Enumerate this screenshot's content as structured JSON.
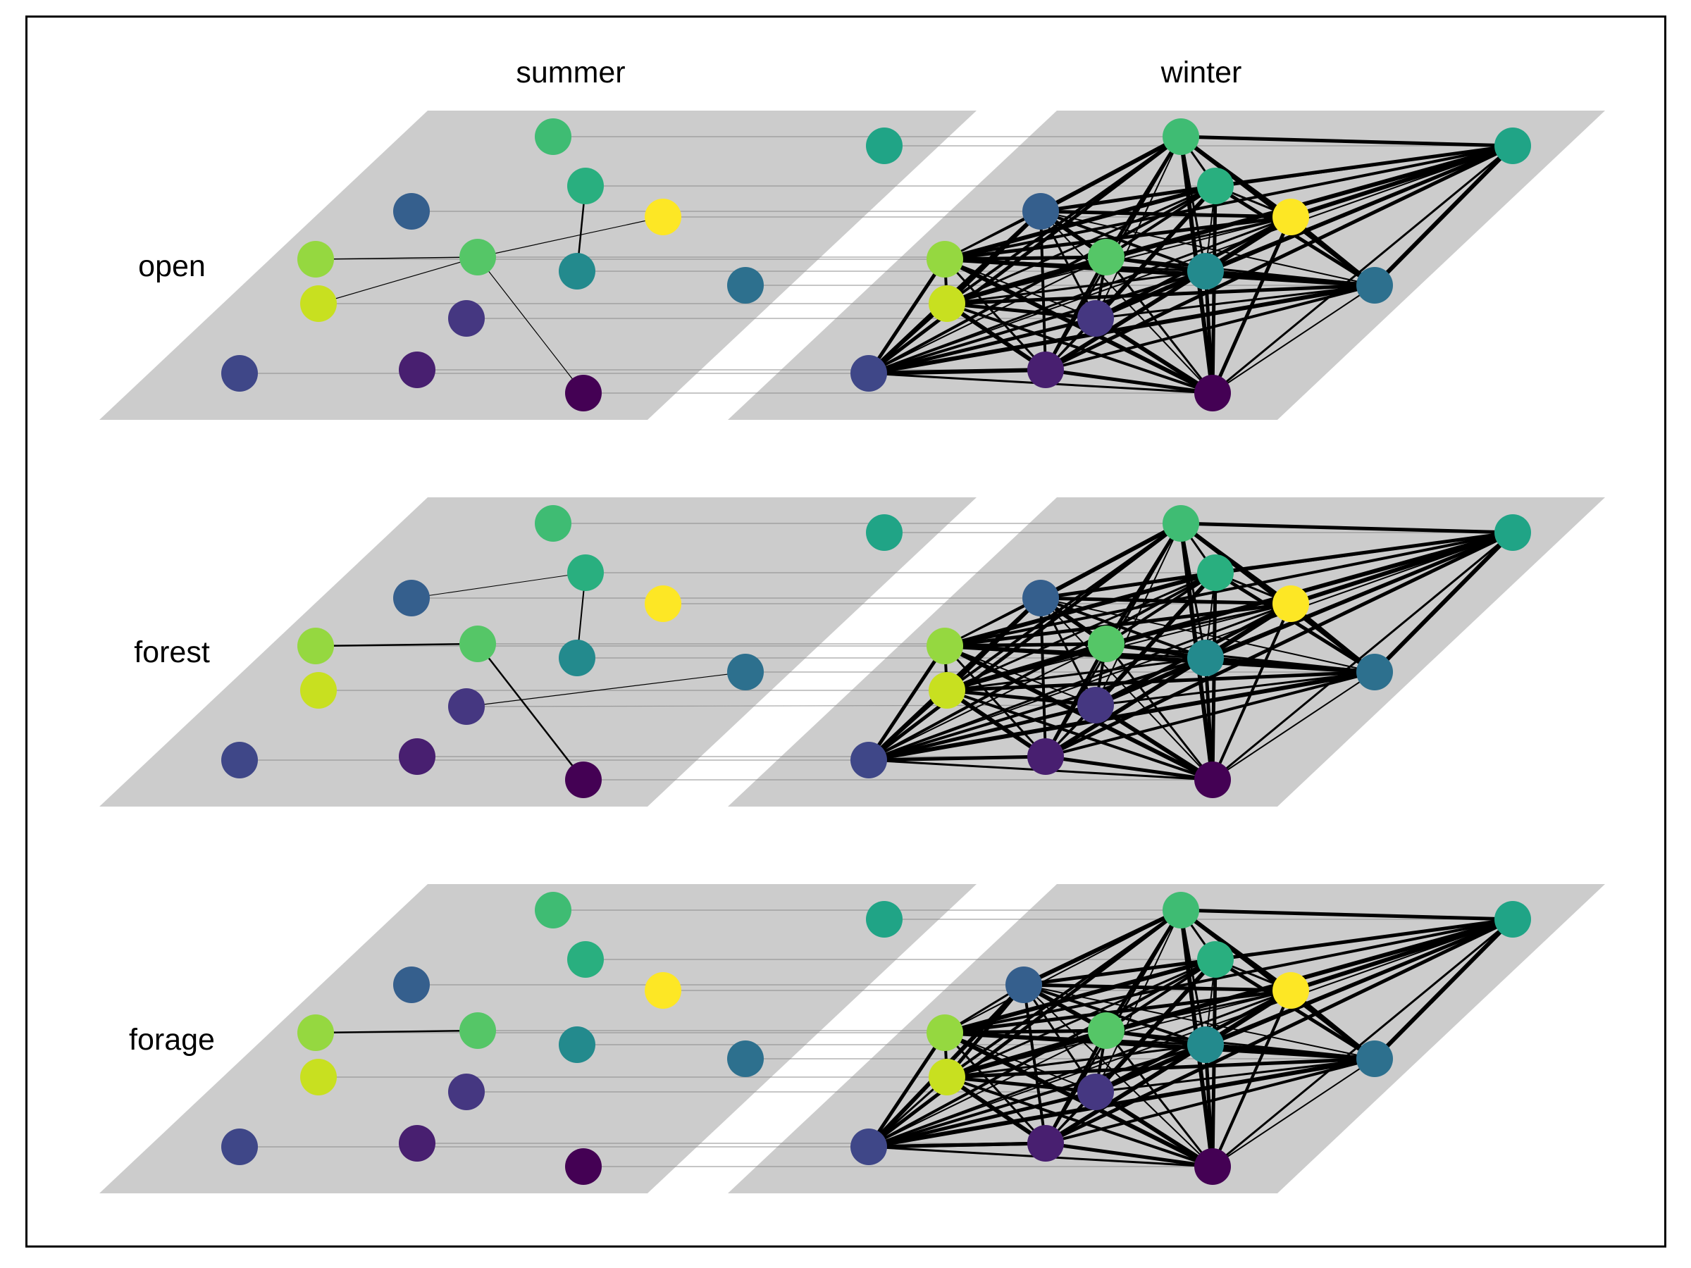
{
  "column_labels": {
    "summer": "summer",
    "winter": "winter"
  },
  "row_labels": {
    "open": "open",
    "forest": "forest",
    "forage": "forage"
  },
  "colors": {
    "panel": "#cccccc",
    "node_palette": "viridis",
    "edge": "#000000",
    "interlayer_link": "#8c8c8c"
  },
  "nodes": [
    {
      "id": "A",
      "color": "#3fbc73"
    },
    {
      "id": "B",
      "color": "#20a486"
    },
    {
      "id": "C",
      "color": "#29af7f"
    },
    {
      "id": "D",
      "color": "#355f8d"
    },
    {
      "id": "E",
      "color": "#fde725"
    },
    {
      "id": "F",
      "color": "#95d840"
    },
    {
      "id": "G",
      "color": "#55c667"
    },
    {
      "id": "H",
      "color": "#238a8d"
    },
    {
      "id": "I",
      "color": "#2d708e"
    },
    {
      "id": "J",
      "color": "#c8e020"
    },
    {
      "id": "K",
      "color": "#453781"
    },
    {
      "id": "L",
      "color": "#3f4788"
    },
    {
      "id": "M",
      "color": "#481f70"
    },
    {
      "id": "N",
      "color": "#440154"
    }
  ],
  "layers": [
    {
      "row": "open",
      "season": "summer",
      "edges": [
        {
          "s": "C",
          "t": "H",
          "w": 2.5
        },
        {
          "s": "F",
          "t": "G",
          "w": 1.5
        },
        {
          "s": "J",
          "t": "G",
          "w": 1.2
        },
        {
          "s": "G",
          "t": "E",
          "w": 1.2
        },
        {
          "s": "G",
          "t": "N",
          "w": 1.2
        }
      ]
    },
    {
      "row": "open",
      "season": "winter",
      "dense": true,
      "edges": [
        {
          "s": "B",
          "t": "A",
          "w": 2
        },
        {
          "s": "B",
          "t": "C",
          "w": 3
        },
        {
          "s": "B",
          "t": "E",
          "w": 4
        },
        {
          "s": "B",
          "t": "D",
          "w": 2
        },
        {
          "s": "B",
          "t": "F",
          "w": 2
        },
        {
          "s": "B",
          "t": "I",
          "w": 6
        },
        {
          "s": "E",
          "t": "I",
          "w": 2
        },
        {
          "s": "E",
          "t": "N",
          "w": 5
        },
        {
          "s": "E",
          "t": "M",
          "w": 4
        },
        {
          "s": "I",
          "t": "F",
          "w": 3
        },
        {
          "s": "I",
          "t": "J",
          "w": 3
        },
        {
          "s": "I",
          "t": "L",
          "w": 2
        },
        {
          "s": "I",
          "t": "H",
          "w": 3
        },
        {
          "s": "I",
          "t": "K",
          "w": 2
        },
        {
          "s": "N",
          "t": "K",
          "w": 4
        },
        {
          "s": "N",
          "t": "M",
          "w": 1.5
        },
        {
          "s": "L",
          "t": "M",
          "w": 6
        },
        {
          "s": "H",
          "t": "N",
          "w": 2
        }
      ]
    },
    {
      "row": "forest",
      "season": "summer",
      "edges": [
        {
          "s": "D",
          "t": "C",
          "w": 1
        },
        {
          "s": "C",
          "t": "H",
          "w": 2
        },
        {
          "s": "F",
          "t": "G",
          "w": 2.5
        },
        {
          "s": "G",
          "t": "N",
          "w": 2.5
        },
        {
          "s": "K",
          "t": "I",
          "w": 1.2
        }
      ]
    },
    {
      "row": "forest",
      "season": "winter",
      "dense": true,
      "edges": [
        {
          "s": "B",
          "t": "A",
          "w": 2
        },
        {
          "s": "B",
          "t": "C",
          "w": 3
        },
        {
          "s": "B",
          "t": "E",
          "w": 4
        },
        {
          "s": "B",
          "t": "I",
          "w": 6
        },
        {
          "s": "E",
          "t": "I",
          "w": 3
        },
        {
          "s": "E",
          "t": "N",
          "w": 3
        },
        {
          "s": "E",
          "t": "M",
          "w": 4
        },
        {
          "s": "I",
          "t": "F",
          "w": 2
        },
        {
          "s": "I",
          "t": "L",
          "w": 1.5
        },
        {
          "s": "N",
          "t": "M",
          "w": 2
        },
        {
          "s": "L",
          "t": "M",
          "w": 4
        },
        {
          "s": "H",
          "t": "N",
          "w": 3
        }
      ]
    },
    {
      "row": "forage",
      "season": "summer",
      "edges": [
        {
          "s": "F",
          "t": "G",
          "w": 2.5
        }
      ]
    },
    {
      "row": "forage",
      "season": "winter",
      "dense": true,
      "edges": [
        {
          "s": "B",
          "t": "A",
          "w": 2
        },
        {
          "s": "B",
          "t": "C",
          "w": 3
        },
        {
          "s": "B",
          "t": "E",
          "w": 4
        },
        {
          "s": "B",
          "t": "I",
          "w": 6
        },
        {
          "s": "E",
          "t": "I",
          "w": 2
        },
        {
          "s": "E",
          "t": "N",
          "w": 4
        },
        {
          "s": "E",
          "t": "M",
          "w": 4
        },
        {
          "s": "I",
          "t": "F",
          "w": 3
        },
        {
          "s": "I",
          "t": "J",
          "w": 2
        },
        {
          "s": "I",
          "t": "L",
          "w": 2
        },
        {
          "s": "I",
          "t": "K",
          "w": 2
        },
        {
          "s": "N",
          "t": "K",
          "w": 3
        },
        {
          "s": "L",
          "t": "M",
          "w": 5
        },
        {
          "s": "H",
          "t": "N",
          "w": 3
        },
        {
          "s": "H",
          "t": "E",
          "w": 3
        }
      ]
    }
  ]
}
